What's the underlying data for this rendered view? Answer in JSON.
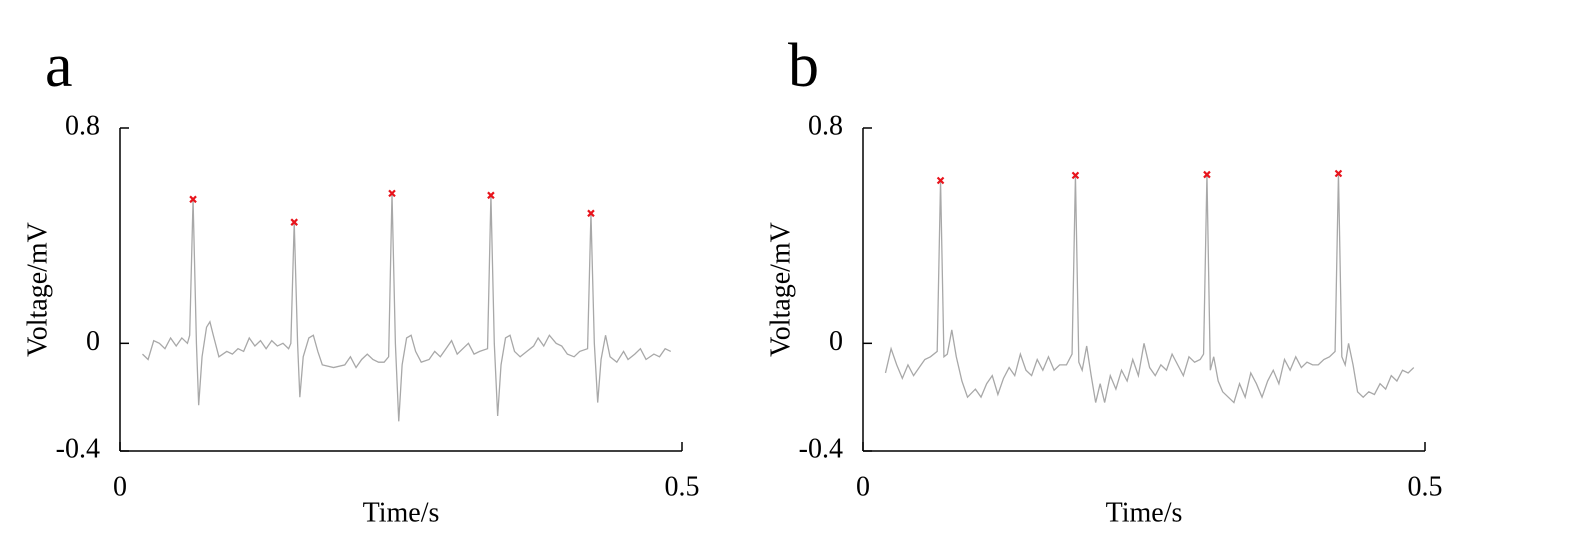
{
  "chart_data": [
    {
      "type": "line",
      "panel_label": "a",
      "xlabel": "Time/s",
      "ylabel": "Voltage/mV",
      "xlim": [
        0,
        0.5
      ],
      "ylim": [
        -0.4,
        0.8
      ],
      "xticks": [
        0,
        0.5
      ],
      "yticks": [
        -0.4,
        0,
        0.8
      ],
      "x": [
        0.02,
        0.025,
        0.03,
        0.035,
        0.04,
        0.045,
        0.05,
        0.055,
        0.06,
        0.062,
        0.065,
        0.068,
        0.07,
        0.073,
        0.077,
        0.08,
        0.083,
        0.088,
        0.095,
        0.1,
        0.105,
        0.11,
        0.115,
        0.12,
        0.125,
        0.13,
        0.135,
        0.14,
        0.145,
        0.15,
        0.152,
        0.155,
        0.158,
        0.16,
        0.163,
        0.168,
        0.172,
        0.176,
        0.18,
        0.19,
        0.2,
        0.205,
        0.21,
        0.215,
        0.22,
        0.225,
        0.23,
        0.235,
        0.239,
        0.242,
        0.245,
        0.248,
        0.251,
        0.255,
        0.259,
        0.263,
        0.268,
        0.275,
        0.28,
        0.285,
        0.29,
        0.295,
        0.3,
        0.305,
        0.31,
        0.315,
        0.32,
        0.327,
        0.33,
        0.333,
        0.336,
        0.339,
        0.343,
        0.347,
        0.351,
        0.356,
        0.362,
        0.368,
        0.372,
        0.377,
        0.382,
        0.388,
        0.393,
        0.398,
        0.404,
        0.409,
        0.416,
        0.419,
        0.422,
        0.425,
        0.428,
        0.432,
        0.436,
        0.442,
        0.448,
        0.452,
        0.458,
        0.463,
        0.468,
        0.475,
        0.48,
        0.485,
        0.49
      ],
      "series": [
        {
          "color": "#a8a8a8",
          "values": [
            -0.04,
            -0.06,
            0.01,
            0.0,
            -0.02,
            0.02,
            -0.01,
            0.02,
            0.0,
            0.03,
            0.535,
            0.0,
            -0.23,
            -0.05,
            0.06,
            0.08,
            0.03,
            -0.05,
            -0.03,
            -0.04,
            -0.02,
            -0.03,
            0.02,
            -0.01,
            0.01,
            -0.02,
            0.01,
            -0.01,
            0.0,
            -0.02,
            0.0,
            0.45,
            0.0,
            -0.2,
            -0.05,
            0.02,
            0.03,
            -0.03,
            -0.08,
            -0.09,
            -0.08,
            -0.05,
            -0.09,
            -0.06,
            -0.04,
            -0.06,
            -0.07,
            -0.07,
            -0.05,
            0.557,
            0.0,
            -0.29,
            -0.08,
            0.02,
            0.03,
            -0.03,
            -0.07,
            -0.06,
            -0.03,
            -0.05,
            -0.02,
            0.01,
            -0.04,
            -0.02,
            0.0,
            -0.04,
            -0.03,
            -0.02,
            0.55,
            0.0,
            -0.27,
            -0.08,
            0.02,
            0.03,
            -0.03,
            -0.05,
            -0.03,
            -0.01,
            0.02,
            -0.01,
            0.03,
            0.0,
            -0.01,
            -0.04,
            -0.05,
            -0.03,
            -0.02,
            0.483,
            0.0,
            -0.22,
            -0.06,
            0.03,
            -0.05,
            -0.07,
            -0.03,
            -0.06,
            -0.04,
            -0.02,
            -0.06,
            -0.04,
            -0.05,
            -0.02,
            -0.03
          ]
        }
      ],
      "peaks": {
        "color": "#e8141c",
        "x": [
          0.065,
          0.155,
          0.242,
          0.33,
          0.419
        ],
        "values": [
          0.535,
          0.45,
          0.557,
          0.55,
          0.483
        ]
      }
    },
    {
      "type": "line",
      "panel_label": "b",
      "xlabel": "Time/s",
      "ylabel": "Voltage/mV",
      "xlim": [
        0,
        0.5
      ],
      "ylim": [
        -0.4,
        0.8
      ],
      "xticks": [
        0,
        0.5
      ],
      "yticks": [
        -0.4,
        0,
        0.8
      ],
      "x": [
        0.02,
        0.025,
        0.03,
        0.035,
        0.04,
        0.045,
        0.05,
        0.055,
        0.06,
        0.066,
        0.069,
        0.072,
        0.075,
        0.079,
        0.083,
        0.088,
        0.093,
        0.1,
        0.105,
        0.11,
        0.115,
        0.12,
        0.125,
        0.13,
        0.135,
        0.14,
        0.145,
        0.15,
        0.155,
        0.16,
        0.165,
        0.17,
        0.175,
        0.181,
        0.186,
        0.189,
        0.192,
        0.195,
        0.199,
        0.203,
        0.207,
        0.211,
        0.215,
        0.22,
        0.225,
        0.23,
        0.235,
        0.24,
        0.245,
        0.25,
        0.255,
        0.26,
        0.265,
        0.27,
        0.275,
        0.28,
        0.285,
        0.29,
        0.295,
        0.3,
        0.303,
        0.306,
        0.309,
        0.312,
        0.316,
        0.32,
        0.325,
        0.33,
        0.335,
        0.34,
        0.345,
        0.35,
        0.355,
        0.36,
        0.365,
        0.37,
        0.375,
        0.38,
        0.385,
        0.39,
        0.395,
        0.4,
        0.405,
        0.41,
        0.415,
        0.42,
        0.423,
        0.426,
        0.429,
        0.432,
        0.436,
        0.44,
        0.445,
        0.45,
        0.455,
        0.46,
        0.465,
        0.47,
        0.475,
        0.48,
        0.485,
        0.49
      ],
      "series": [
        {
          "color": "#a8a8a8",
          "values": [
            -0.11,
            -0.02,
            -0.08,
            -0.13,
            -0.08,
            -0.12,
            -0.09,
            -0.06,
            -0.05,
            -0.03,
            0.605,
            -0.05,
            -0.04,
            0.05,
            -0.05,
            -0.14,
            -0.2,
            -0.17,
            -0.2,
            -0.15,
            -0.12,
            -0.19,
            -0.13,
            -0.09,
            -0.12,
            -0.04,
            -0.1,
            -0.12,
            -0.06,
            -0.1,
            -0.05,
            -0.1,
            -0.08,
            -0.08,
            -0.04,
            0.624,
            -0.07,
            -0.1,
            -0.01,
            -0.12,
            -0.22,
            -0.15,
            -0.22,
            -0.12,
            -0.17,
            -0.1,
            -0.14,
            -0.06,
            -0.12,
            0.0,
            -0.09,
            -0.12,
            -0.08,
            -0.1,
            -0.04,
            -0.08,
            -0.12,
            -0.05,
            -0.07,
            -0.06,
            -0.04,
            0.627,
            -0.1,
            -0.05,
            -0.14,
            -0.18,
            -0.2,
            -0.22,
            -0.15,
            -0.2,
            -0.11,
            -0.15,
            -0.2,
            -0.14,
            -0.1,
            -0.15,
            -0.06,
            -0.1,
            -0.05,
            -0.09,
            -0.07,
            -0.08,
            -0.08,
            -0.06,
            -0.05,
            -0.03,
            0.631,
            -0.05,
            -0.08,
            0.0,
            -0.08,
            -0.18,
            -0.2,
            -0.18,
            -0.19,
            -0.15,
            -0.17,
            -0.12,
            -0.14,
            -0.1,
            -0.11,
            -0.09
          ]
        }
      ],
      "peaks": {
        "color": "#e8141c",
        "x": [
          0.069,
          0.189,
          0.306,
          0.423
        ],
        "values": [
          0.605,
          0.624,
          0.627,
          0.631
        ]
      }
    }
  ]
}
